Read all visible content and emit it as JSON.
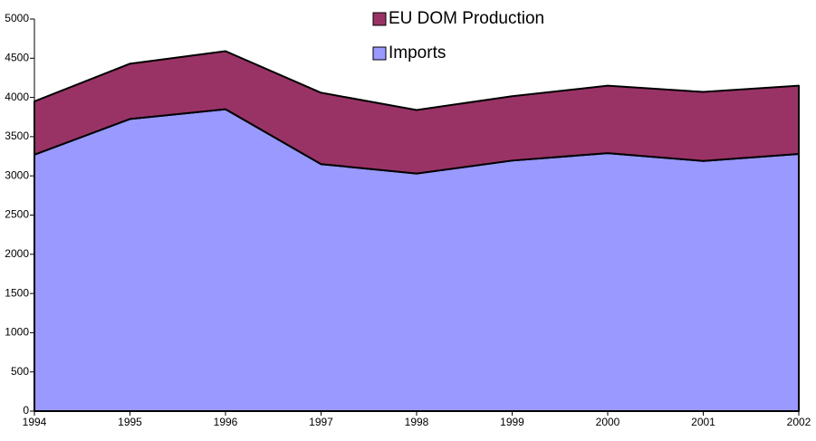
{
  "chart_data": {
    "type": "stacked_area",
    "categories": [
      "1994",
      "1995",
      "1996",
      "1997",
      "1998",
      "1999",
      "2000",
      "2001",
      "2002"
    ],
    "series": [
      {
        "name": "Imports",
        "color": "#9999ff",
        "values": [
          3270,
          3725,
          3850,
          3150,
          3030,
          3195,
          3290,
          3190,
          3280
        ]
      },
      {
        "name": "EU DOM Production",
        "color": "#993366",
        "values": [
          680,
          705,
          740,
          910,
          810,
          820,
          860,
          880,
          870
        ]
      }
    ],
    "ylim": [
      0,
      5000
    ],
    "yticks": [
      0,
      500,
      1000,
      1500,
      2000,
      2500,
      3000,
      3500,
      4000,
      4500,
      5000
    ],
    "legend": "top"
  }
}
